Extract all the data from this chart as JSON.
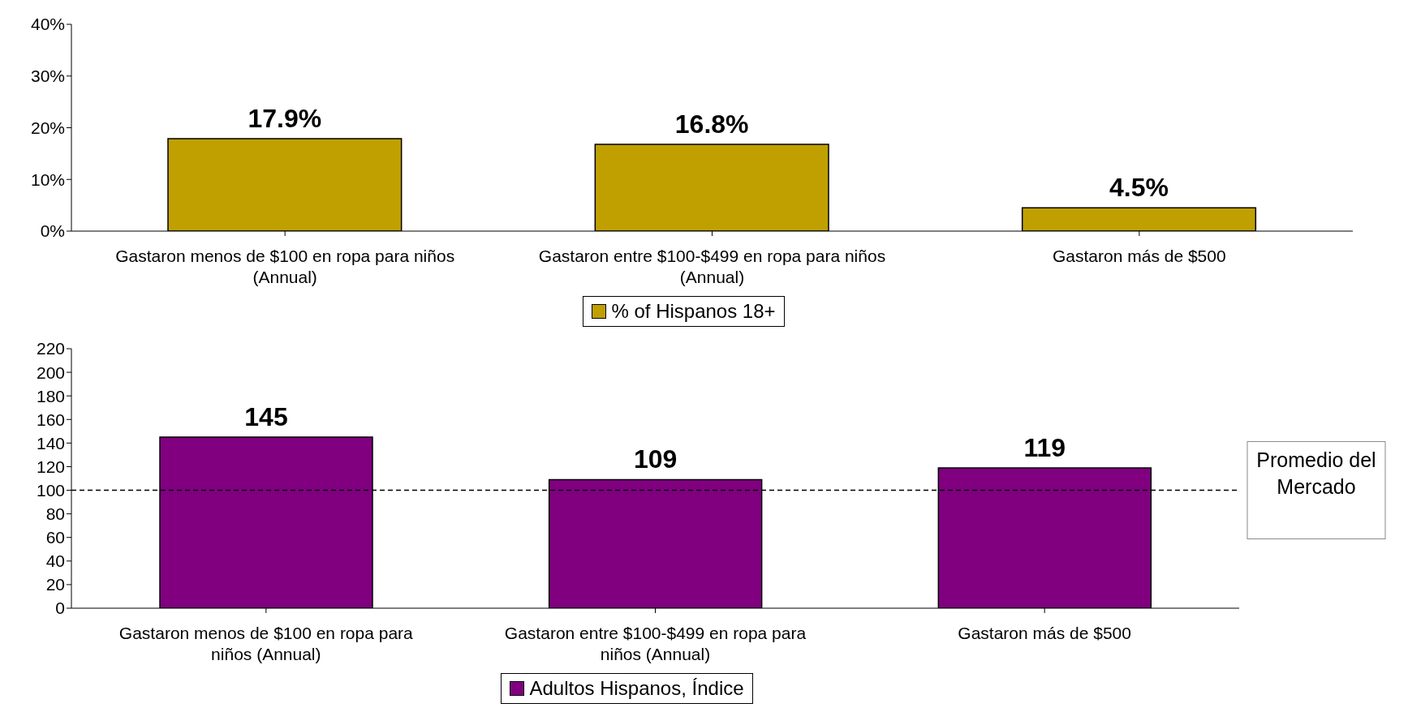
{
  "chart_data": [
    {
      "type": "bar",
      "categories": [
        "Gastaron menos de $100 en ropa para niños (Annual)",
        "Gastaron entre $100-$499 en ropa para niños (Annual)",
        "Gastaron más de $500"
      ],
      "series": [
        {
          "name": "% of Hispanos 18+",
          "color": "#c0a000",
          "values": [
            17.9,
            16.8,
            4.5
          ],
          "value_labels": [
            "17.9%",
            "16.8%",
            "4.5%"
          ]
        }
      ],
      "ylim": [
        0,
        40
      ],
      "yticks": [
        {
          "value": 0,
          "label": "0%"
        },
        {
          "value": 10,
          "label": "10%"
        },
        {
          "value": 20,
          "label": "20%"
        },
        {
          "value": 30,
          "label": "30%"
        },
        {
          "value": 40,
          "label": "40%"
        }
      ],
      "grid": false,
      "legend": "bottom"
    },
    {
      "type": "bar",
      "categories": [
        "Gastaron menos de $100 en ropa para niños (Annual)",
        "Gastaron entre $100-$499 en ropa para niños (Annual)",
        "Gastaron más de $500"
      ],
      "series": [
        {
          "name": "Adultos Hispanos, Índice",
          "color": "#800080",
          "values": [
            145,
            109,
            119
          ]
        }
      ],
      "ylim": [
        0,
        220
      ],
      "yticks": [
        0,
        20,
        40,
        60,
        80,
        100,
        120,
        140,
        160,
        180,
        200,
        220
      ],
      "data_labels": true,
      "grid": false,
      "legend": "bottom",
      "ref_lines": [
        {
          "axis": "y",
          "value": 100,
          "label": "Promedio del Mercado",
          "color": "#000000",
          "line_style": "dashed"
        }
      ]
    }
  ]
}
